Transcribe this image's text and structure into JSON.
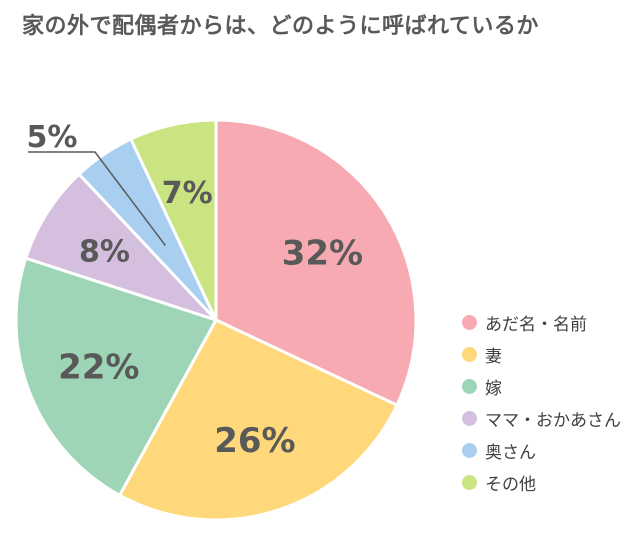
{
  "title": "家の外で配偶者からは、どのように呼ばれているか",
  "chart_data": {
    "type": "pie",
    "title": "家の外で配偶者からは、どのように呼ばれているか",
    "start_angle_deg": 0,
    "direction": "clockwise",
    "legend_position": "right",
    "slices": [
      {
        "label": "あだ名・名前",
        "value": 32,
        "display": "32%",
        "color": "#f8aab2"
      },
      {
        "label": "妻",
        "value": 26,
        "display": "26%",
        "color": "#fed87a"
      },
      {
        "label": "嫁",
        "value": 22,
        "display": "22%",
        "color": "#9ed5b7"
      },
      {
        "label": "ママ・おかあさん",
        "value": 8,
        "display": "8%",
        "color": "#d4bfdf"
      },
      {
        "label": "奥さん",
        "value": 5,
        "display": "5%",
        "color": "#a8cfef"
      },
      {
        "label": "その他",
        "value": 7,
        "display": "7%",
        "color": "#c9e481"
      }
    ]
  }
}
